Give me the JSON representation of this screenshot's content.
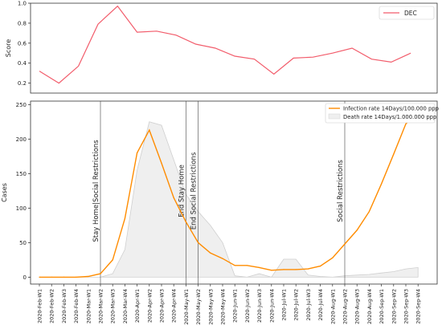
{
  "chart_data": [
    {
      "type": "line",
      "title": "",
      "xlabel": "",
      "ylabel": "Score",
      "ylim": [
        0.1,
        1.0
      ],
      "yticks": [
        "0.2",
        "0.4",
        "0.6",
        "0.8",
        "1.0"
      ],
      "grid": false,
      "legend_position": "top-right",
      "series": [
        {
          "name": "DEC",
          "color": "#f25c6b",
          "values": [
            0.32,
            0.2,
            0.37,
            0.79,
            0.97,
            0.71,
            0.72,
            0.68,
            0.59,
            0.55,
            0.47,
            0.44,
            0.29,
            0.45,
            0.46,
            0.5,
            0.55,
            0.44,
            0.41,
            0.5
          ]
        }
      ]
    },
    {
      "type": "line",
      "title": "",
      "xlabel": "",
      "ylabel": "Cases",
      "ylim": [
        -10,
        255
      ],
      "yticks": [
        "0",
        "50",
        "100",
        "150",
        "200",
        "250"
      ],
      "grid": false,
      "legend_position": "top-right",
      "categories": [
        "2020-Feb-W1",
        "2020-Feb-W2",
        "2020-Feb-W3",
        "2020-Feb-W4",
        "2020-Mar-W1",
        "2020-Mar-W2",
        "2020-Mar-W3",
        "2020-Mar-W4",
        "2020-Apr-W1",
        "2020-Apr-W2",
        "2020-Apr-W3",
        "2020-Apr-W4",
        "2020-May-W1",
        "2020-May-W2",
        "2020-May-W3",
        "2020-May-W4",
        "2020-Jun-W1",
        "2020-Jun-W2",
        "2020-Jun-W3",
        "2020-Jun-W4",
        "2020-Jul-W1",
        "2020-Jul-W2",
        "2020-Jul-W3",
        "2020-Jul-W4",
        "2020-Aug-W1",
        "2020-Aug-W2",
        "2020-Aug-W3",
        "2020-Aug-W4",
        "2020-Sep-W1",
        "2020-Sep-W2",
        "2020-Sep-W3",
        "2020-Sep-W4"
      ],
      "series": [
        {
          "name": "Infection rate 14Days/100.000 ppp",
          "color": "#ff8c00",
          "values": [
            0,
            0,
            0,
            0,
            1,
            5,
            25,
            85,
            180,
            213,
            165,
            115,
            80,
            50,
            35,
            27,
            17,
            17,
            14,
            10,
            11,
            11,
            12,
            16,
            28,
            48,
            68,
            95,
            135,
            178,
            222,
            240
          ]
        },
        {
          "name": "Death rate 14Days/1.000.000 ppp",
          "color": "#d9d9d9",
          "values": [
            0,
            0,
            0,
            0,
            0,
            0,
            5,
            40,
            155,
            225,
            220,
            170,
            120,
            95,
            75,
            50,
            2,
            0,
            5,
            0,
            26,
            26,
            3,
            1,
            0,
            2,
            3,
            4,
            6,
            8,
            12,
            14
          ]
        }
      ],
      "annotations": [
        {
          "label": "Stay Home|Social Restrictions",
          "x": "2020-Mar-W2"
        },
        {
          "label": "End Stay Home",
          "x": "2020-May-W1"
        },
        {
          "label": "End Social Restrictions",
          "x": "2020-May-W2"
        },
        {
          "label": "Social Restrictions",
          "x": "2020-Aug-W2"
        }
      ]
    }
  ]
}
